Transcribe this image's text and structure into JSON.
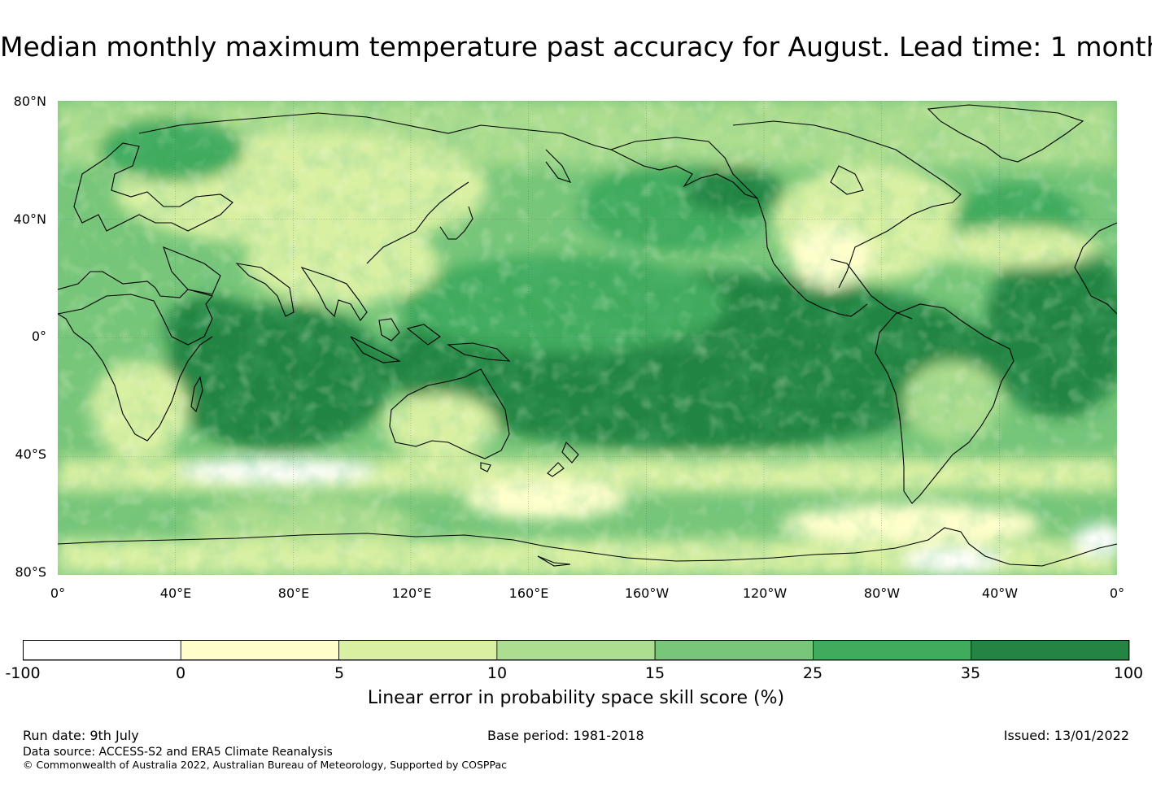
{
  "title": "Median monthly maximum temperature past accuracy for August. Lead time: 1 month",
  "map": {
    "lat_labels": [
      "80°N",
      "40°N",
      "0°",
      "40°S",
      "80°S"
    ],
    "lon_labels": [
      "0°",
      "40°E",
      "80°E",
      "120°E",
      "160°E",
      "160°W",
      "120°W",
      "80°W",
      "40°W",
      "0°"
    ]
  },
  "legend": {
    "ticks": [
      "-100",
      "0",
      "5",
      "10",
      "15",
      "25",
      "35",
      "100"
    ],
    "colors": [
      "#ffffff",
      "#ffffcc",
      "#d9f0a3",
      "#addd8e",
      "#78c679",
      "#41ab5d",
      "#238443"
    ],
    "label": "Linear error in probability space skill score (%)"
  },
  "footer": {
    "run_date": "Run date: 9th July",
    "base_period": "Base period: 1981-2018",
    "issued": "Issued: 13/01/2022",
    "data_source": "Data source: ACCESS-S2 and ERA5 Climate Reanalysis",
    "copyright": "© Commonwealth of Australia 2022, Australian Bureau of Meteorology, Supported by COSPPac"
  }
}
